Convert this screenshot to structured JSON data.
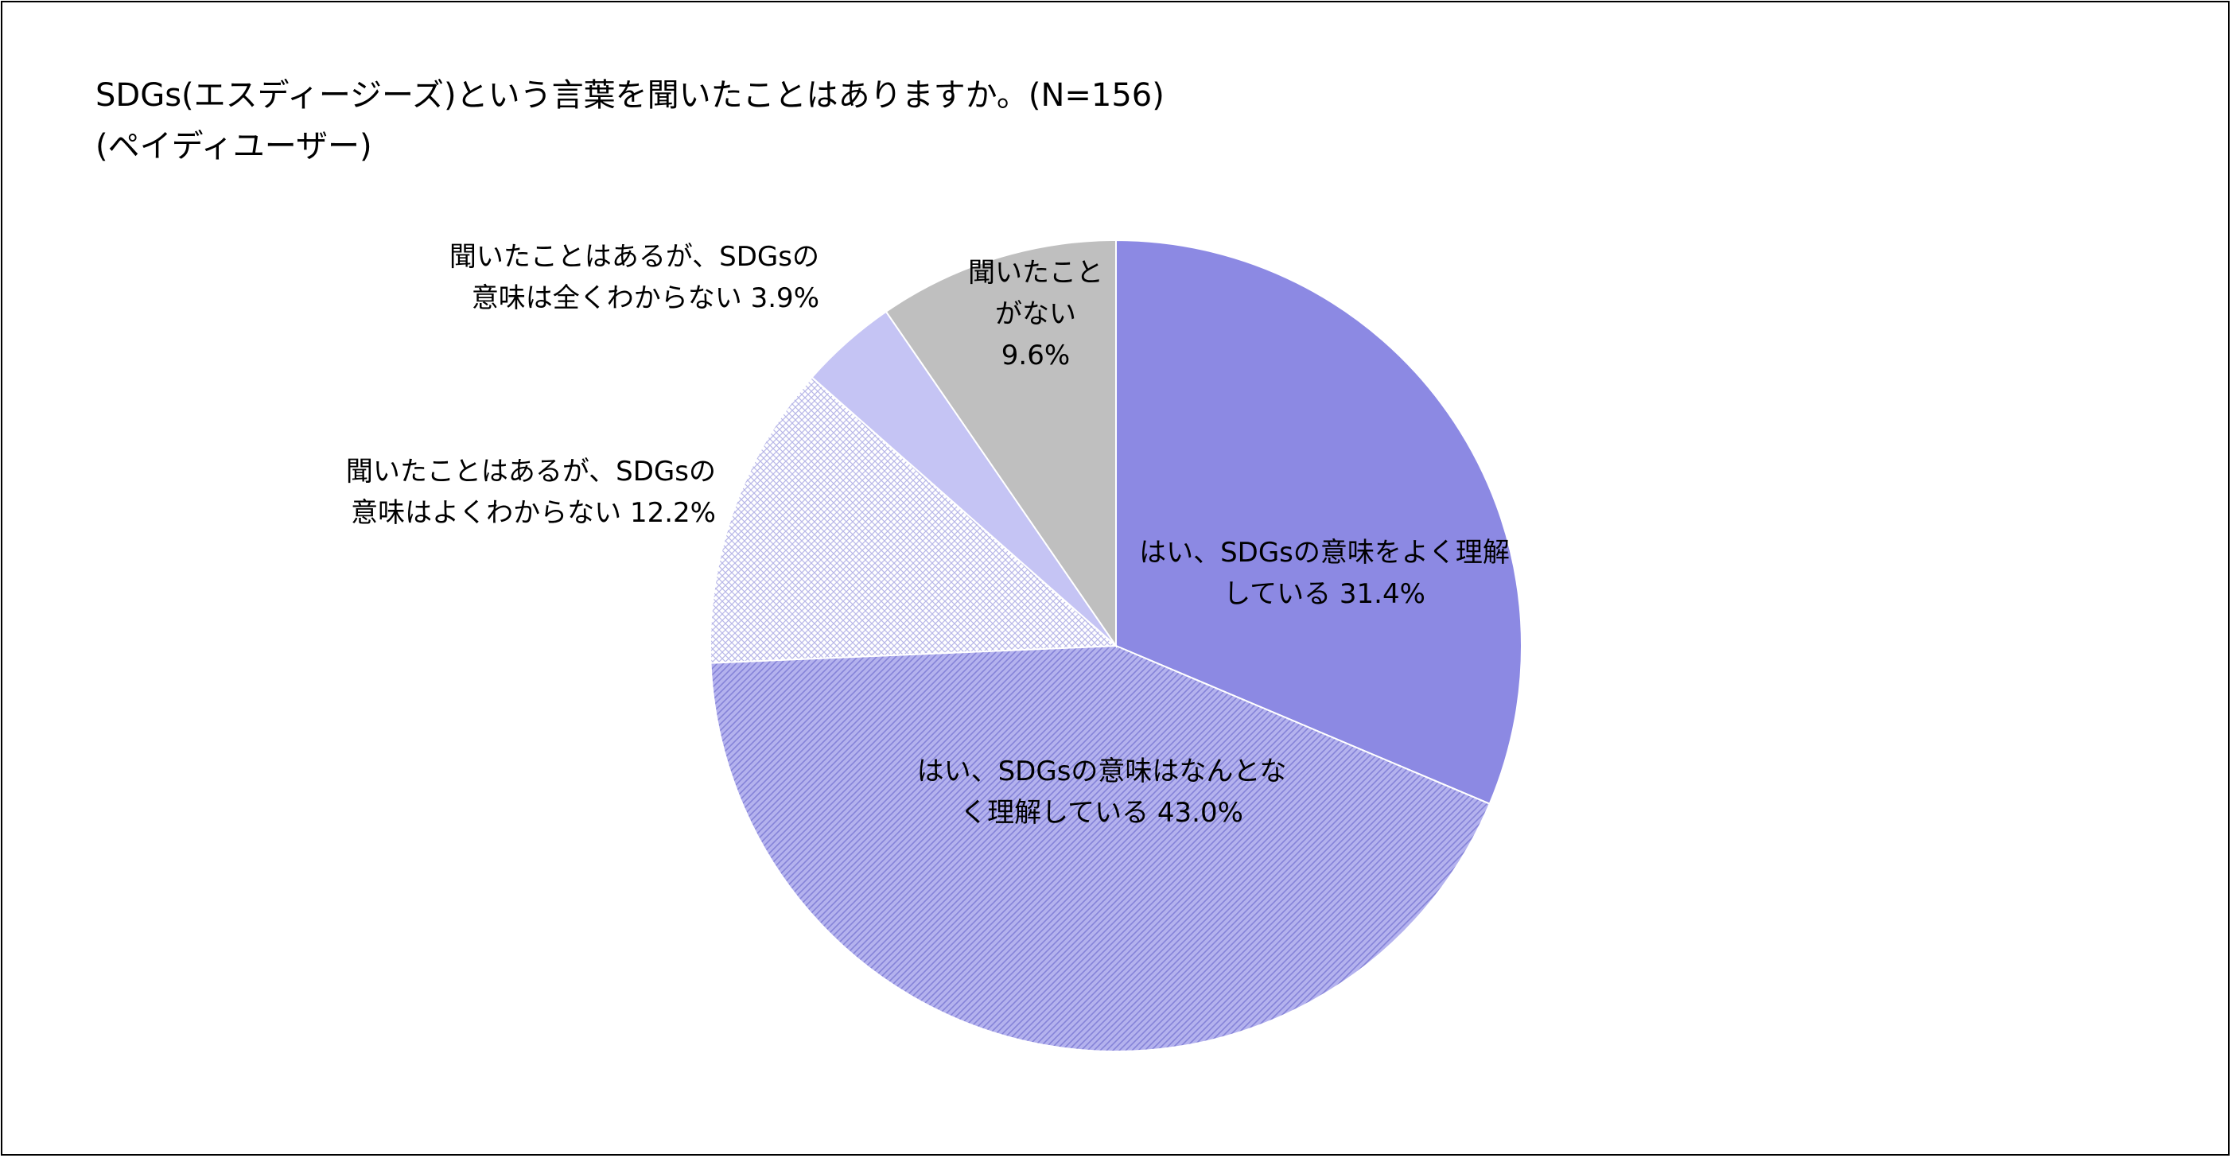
{
  "title": {
    "line1": "SDGs(エスディージーズ)という言葉を聞いたことはありますか。(N=156)",
    "line2": "(ペイディユーザー)"
  },
  "chart_data": {
    "type": "pie",
    "title": "SDGs(エスディージーズ)という言葉を聞いたことはありますか。(N=156)",
    "subtitle": "(ペイディユーザー)",
    "start_angle_deg": 0,
    "direction": "clockwise",
    "slices": [
      {
        "label_lines": [
          "はい、SDGsの意味をよく理解",
          "している 31.4%"
        ],
        "category": "はい、SDGsの意味をよく理解している",
        "value": 31.4,
        "color": "#8c89e3",
        "pattern": "solid",
        "label_text_anchor": "middle"
      },
      {
        "label_lines": [
          "はい、SDGsの意味はなんとな",
          "く理解している 43.0%"
        ],
        "category": "はい、SDGsの意味はなんとなく理解している",
        "value": 43.0,
        "color": "#b4b2ee",
        "pattern": "diagonal",
        "label_text_anchor": "middle"
      },
      {
        "label_lines": [
          "聞いたことはあるが、SDGsの",
          "意味はよくわからない 12.2%"
        ],
        "category": "聞いたことはあるが、SDGsの意味はよくわからない",
        "value": 12.2,
        "color": "#d6d5f5",
        "pattern": "checker",
        "label_text_anchor": "end"
      },
      {
        "label_lines": [
          "聞いたことはあるが、SDGsの",
          "意味は全くわからない 3.9%"
        ],
        "category": "聞いたことはあるが、SDGsの意味は全くわからない",
        "value": 3.9,
        "color": "#c5c4f4",
        "pattern": "solid",
        "label_text_anchor": "end"
      },
      {
        "label_lines": [
          "聞いたこと",
          "がない",
          "9.6%"
        ],
        "category": "聞いたことがない",
        "value": 9.6,
        "color": "#bfbfbf",
        "pattern": "solid",
        "label_text_anchor": "middle"
      }
    ]
  }
}
